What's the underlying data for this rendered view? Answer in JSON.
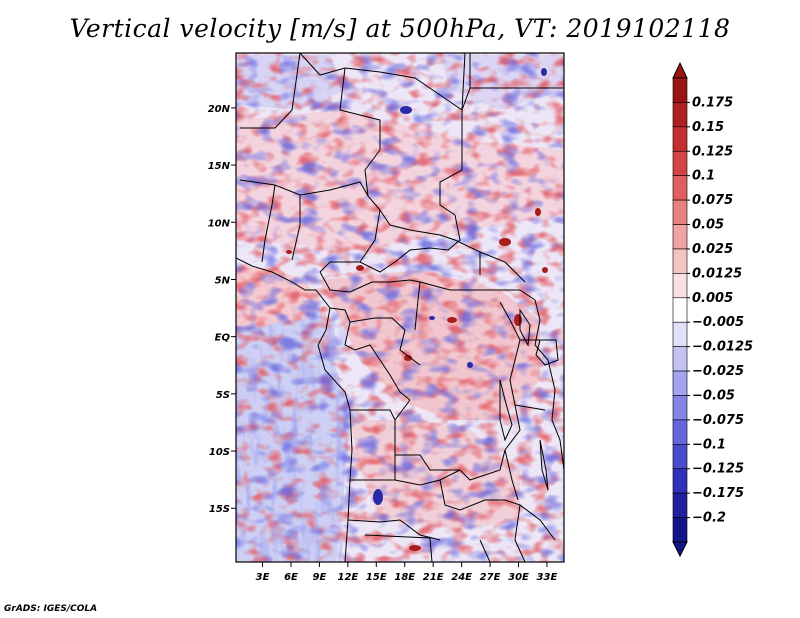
{
  "chart_data": {
    "type": "heatmap",
    "title": "Vertical velocity [m/s] at 500hPa, VT: 2019102118",
    "variable": "Vertical velocity",
    "units": "m/s",
    "level": "500hPa",
    "valid_time": "2019102118",
    "xlabel": "",
    "ylabel": "",
    "x_ticks": [
      "3E",
      "6E",
      "9E",
      "12E",
      "15E",
      "18E",
      "21E",
      "24E",
      "27E",
      "30E",
      "33E"
    ],
    "x_tick_values": [
      3,
      6,
      9,
      12,
      15,
      18,
      21,
      24,
      27,
      30,
      33
    ],
    "y_ticks": [
      "20N",
      "15N",
      "10N",
      "5N",
      "EQ",
      "5S",
      "10S",
      "15S"
    ],
    "y_tick_values": [
      20,
      15,
      10,
      5,
      0,
      -5,
      -10,
      -15
    ],
    "xlim": [
      0.2,
      34.8
    ],
    "ylim": [
      -19.7,
      24.8
    ],
    "colorbar": {
      "levels": [
        0.175,
        0.15,
        0.125,
        0.1,
        0.075,
        0.05,
        0.025,
        0.0125,
        0.005,
        -0.005,
        -0.0125,
        -0.025,
        -0.05,
        -0.075,
        -0.1,
        -0.125,
        -0.175,
        -0.2
      ],
      "labels": [
        "0.175",
        "0.15",
        "0.125",
        "0.1",
        "0.075",
        "0.05",
        "0.025",
        "0.0125",
        "0.005",
        "−0.005",
        "−0.0125",
        "−0.025",
        "−0.05",
        "−0.075",
        "−0.1",
        "−0.125",
        "−0.175",
        "−0.2"
      ],
      "colors": [
        "#9b1414",
        "#b01f1f",
        "#c42f2f",
        "#d44444",
        "#e05f5f",
        "#e98080",
        "#f1a2a2",
        "#f6c3c3",
        "#fae1e1",
        "#ffffff",
        "#e1e1fa",
        "#c3c3f6",
        "#a4a4f0",
        "#8585e8",
        "#6666dc",
        "#4a4acd",
        "#3030b8",
        "#1f1f9f",
        "#14148a"
      ]
    },
    "annotations": [
      "GrADS: IGES/COLA"
    ]
  },
  "credit": "GrADS: IGES/COLA"
}
